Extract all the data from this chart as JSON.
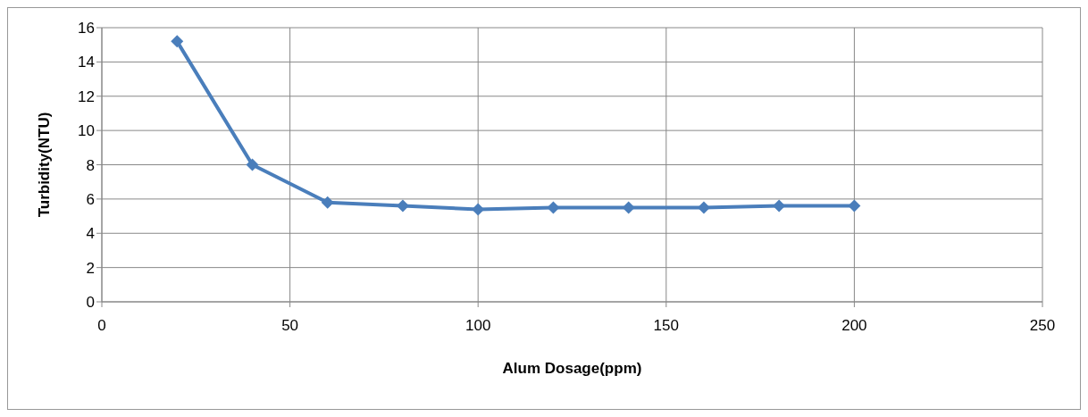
{
  "chart_data": {
    "type": "line",
    "xlabel": "Alum Dosage(ppm)",
    "ylabel": "Turbidity(NTU)",
    "x": [
      20,
      40,
      60,
      80,
      100,
      120,
      140,
      160,
      180,
      200
    ],
    "series": [
      {
        "color": "#4a7ebb",
        "values": [
          15.2,
          8.0,
          5.8,
          5.6,
          5.4,
          5.5,
          5.5,
          5.5,
          5.6,
          5.6
        ]
      }
    ],
    "xlim": [
      0,
      250
    ],
    "xticks": [
      0,
      50,
      100,
      150,
      200,
      250
    ],
    "ylim": [
      0,
      16
    ],
    "yticks": [
      0,
      2,
      4,
      6,
      8,
      10,
      12,
      14,
      16
    ],
    "grid": true,
    "marker": "diamond",
    "line_style": "solid"
  }
}
